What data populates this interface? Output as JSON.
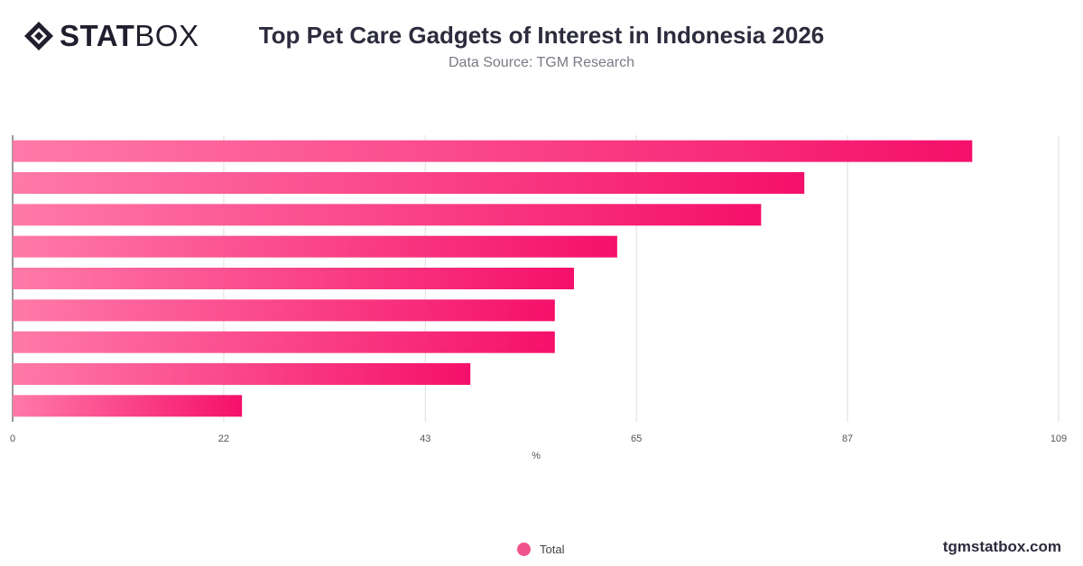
{
  "brand": {
    "logo_bold": "STAT",
    "logo_light": "BOX",
    "logo_icon": "diamond-cube-icon",
    "website": "tgmstatbox.com"
  },
  "header": {
    "title": "Top Pet Care Gadgets of Interest in Indonesia 2026",
    "subtitle": "Data Source: TGM Research"
  },
  "colors": {
    "bar_start": "#ff7aa8",
    "bar_end": "#f5106a",
    "grid": "#dddddd",
    "legend": "#f0548d"
  },
  "chart_data": {
    "type": "bar",
    "orientation": "horizontal",
    "categories": [
      "",
      "",
      "",
      "",
      "",
      "",
      "",
      "",
      ""
    ],
    "series": [
      {
        "name": "Total",
        "values": [
          100,
          82.5,
          78,
          63,
          58.5,
          56.5,
          56.5,
          47.7,
          23.9
        ]
      }
    ],
    "xlabel": "%",
    "ylabel": "",
    "xlim": [
      0,
      109
    ],
    "xticks": [
      0,
      22,
      43,
      65,
      87,
      109
    ],
    "grid": true,
    "legend": "bottom-center"
  }
}
